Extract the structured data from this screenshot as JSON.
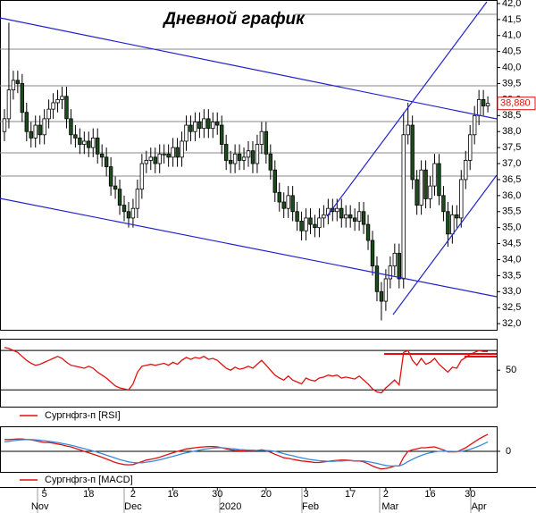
{
  "chart_data": [
    {
      "type": "candlestick",
      "title": "Дневной график",
      "ylim": [
        31.78,
        42.11
      ],
      "xlim": [
        -1,
        111
      ],
      "yticks": [
        {
          "value": 32,
          "label": "32,0"
        },
        {
          "value": 32.5,
          "label": "32,5"
        },
        {
          "value": 33,
          "label": "33,0"
        },
        {
          "value": 33.5,
          "label": "33,5"
        },
        {
          "value": 34,
          "label": "34,0"
        },
        {
          "value": 34.5,
          "label": "34,5"
        },
        {
          "value": 35,
          "label": "35,0"
        },
        {
          "value": 35.5,
          "label": "35,5"
        },
        {
          "value": 36,
          "label": "36,0"
        },
        {
          "value": 36.5,
          "label": "36,5"
        },
        {
          "value": 37,
          "label": "37,0"
        },
        {
          "value": 37.5,
          "label": "37,5"
        },
        {
          "value": 38,
          "label": "38,0"
        },
        {
          "value": 38.5,
          "label": "38,5"
        },
        {
          "value": 39,
          "label": "39,0"
        },
        {
          "value": 39.5,
          "label": "39,5"
        },
        {
          "value": 40,
          "label": "40,0"
        },
        {
          "value": 40.5,
          "label": "40,5"
        },
        {
          "value": 41,
          "label": "41,0"
        },
        {
          "value": 41.5,
          "label": "41,5"
        },
        {
          "value": 42,
          "label": "42,0"
        }
      ],
      "xticks": [
        {
          "value": 9,
          "label": "5"
        },
        {
          "value": 19,
          "label": "18"
        },
        {
          "value": 29,
          "label": "2"
        },
        {
          "value": 38,
          "label": "16"
        },
        {
          "value": 48,
          "label": "30"
        },
        {
          "value": 59,
          "label": "20"
        },
        {
          "value": 68,
          "label": "3"
        },
        {
          "value": 78,
          "label": "17"
        },
        {
          "value": 86,
          "label": "2"
        },
        {
          "value": 96,
          "label": "16"
        },
        {
          "value": 105,
          "label": "30"
        }
      ],
      "month_ticks": [
        {
          "value": 8,
          "label": "Nov"
        },
        {
          "value": 29,
          "label": "Dec"
        },
        {
          "value": 51,
          "label": "2020"
        },
        {
          "value": 69,
          "label": "Feb"
        },
        {
          "value": 87,
          "label": "Mar"
        },
        {
          "value": 107,
          "label": "Apr"
        }
      ],
      "last_price": {
        "value": 38.88,
        "label": "38,880"
      },
      "up_color": "#ffffff",
      "down_color": "#1d4d1d",
      "open": [
        38.0,
        38.4,
        39.3,
        39.6,
        39.5,
        38.6,
        38.0,
        37.8,
        38.2,
        37.9,
        38.4,
        38.7,
        38.9,
        39.0,
        39.1,
        38.4,
        37.9,
        37.8,
        37.6,
        37.7,
        37.5,
        37.8,
        37.3,
        37.2,
        36.9,
        36.3,
        36.2,
        35.7,
        35.5,
        35.3,
        35.6,
        36.2,
        37.0,
        37.1,
        37.2,
        37.0,
        37.3,
        37.3,
        37.2,
        37.5,
        37.2,
        37.7,
        38.2,
        38.0,
        38.3,
        38.1,
        38.4,
        38.1,
        38.3,
        38.2,
        37.6,
        37.1,
        37.0,
        37.3,
        37.1,
        37.2,
        37.4,
        37.0,
        37.6,
        38.0,
        37.3,
        36.8,
        36.1,
        35.8,
        35.6,
        36.0,
        35.5,
        35.2,
        34.9,
        35.3,
        35.1,
        35.0,
        35.3,
        35.4,
        35.6,
        35.5,
        35.6,
        35.3,
        35.4,
        35.3,
        35.2,
        35.5,
        35.1,
        34.6,
        33.8,
        33.0,
        32.7,
        33.4,
        33.8,
        34.2,
        33.4,
        37.9,
        38.2,
        36.5,
        35.7,
        36.8,
        35.9,
        36.3,
        37.0,
        36.0,
        35.5,
        34.8,
        35.4,
        35.3,
        36.5,
        37.1,
        37.9,
        38.5,
        39.0,
        38.8
      ],
      "high": [
        38.7,
        41.4,
        39.9,
        39.9,
        39.8,
        38.9,
        38.3,
        38.5,
        38.5,
        38.7,
        39.0,
        39.2,
        39.3,
        39.4,
        39.4,
        38.7,
        38.2,
        38.1,
        38.0,
        38.0,
        38.1,
        38.1,
        37.6,
        37.5,
        37.2,
        36.6,
        36.5,
        36.0,
        35.8,
        35.9,
        36.5,
        37.3,
        37.4,
        37.5,
        37.5,
        37.6,
        37.6,
        37.6,
        37.8,
        37.8,
        38.0,
        38.5,
        38.5,
        38.6,
        38.6,
        38.7,
        38.7,
        38.6,
        38.6,
        38.5,
        37.9,
        37.4,
        37.6,
        37.6,
        37.5,
        37.7,
        37.7,
        37.9,
        38.3,
        38.3,
        37.6,
        37.1,
        36.4,
        36.1,
        36.3,
        36.3,
        35.8,
        35.5,
        35.6,
        35.6,
        35.4,
        35.6,
        35.7,
        35.9,
        35.9,
        35.9,
        35.9,
        35.7,
        35.7,
        35.6,
        35.8,
        35.8,
        35.4,
        34.9,
        34.1,
        33.3,
        33.7,
        34.1,
        34.5,
        34.5,
        38.6,
        38.9,
        38.5,
        36.8,
        37.1,
        37.1,
        36.6,
        37.3,
        37.3,
        36.3,
        35.8,
        35.7,
        35.7,
        36.8,
        37.4,
        38.2,
        38.8,
        39.3,
        39.3,
        39.1
      ],
      "low": [
        37.7,
        38.1,
        39.0,
        39.2,
        38.3,
        37.7,
        37.5,
        37.5,
        37.6,
        37.6,
        38.1,
        38.4,
        38.6,
        38.7,
        38.1,
        37.6,
        37.5,
        37.3,
        37.3,
        37.2,
        37.2,
        37.0,
        36.9,
        36.6,
        36.0,
        35.9,
        35.4,
        35.2,
        35.0,
        35.0,
        35.3,
        35.9,
        36.7,
        36.8,
        36.7,
        36.7,
        37.0,
        36.9,
        36.9,
        36.9,
        36.9,
        37.4,
        37.7,
        37.7,
        37.8,
        37.8,
        37.8,
        37.8,
        37.9,
        37.3,
        36.8,
        36.7,
        36.7,
        36.8,
        36.8,
        36.9,
        36.7,
        36.7,
        37.3,
        37.0,
        36.5,
        35.8,
        35.5,
        35.3,
        35.3,
        35.2,
        34.9,
        34.6,
        34.6,
        34.8,
        34.7,
        34.7,
        35.0,
        35.1,
        35.2,
        35.2,
        35.0,
        35.0,
        35.0,
        34.9,
        34.9,
        34.8,
        34.3,
        33.5,
        32.7,
        32.1,
        32.4,
        33.1,
        33.5,
        33.1,
        33.1,
        37.6,
        36.2,
        35.4,
        35.4,
        35.6,
        35.6,
        36.0,
        35.7,
        35.2,
        34.4,
        34.5,
        35.0,
        35.0,
        36.2,
        36.8,
        37.6,
        38.2,
        38.5,
        38.6
      ],
      "close": [
        38.4,
        39.3,
        39.6,
        39.5,
        38.6,
        38.0,
        37.8,
        38.2,
        37.9,
        38.4,
        38.7,
        38.9,
        39.0,
        39.1,
        38.4,
        37.9,
        37.8,
        37.6,
        37.7,
        37.5,
        37.8,
        37.3,
        37.2,
        36.9,
        36.3,
        36.2,
        35.7,
        35.5,
        35.3,
        35.6,
        36.2,
        37.0,
        37.1,
        37.2,
        37.0,
        37.3,
        37.3,
        37.2,
        37.5,
        37.2,
        37.7,
        38.2,
        38.0,
        38.3,
        38.1,
        38.4,
        38.1,
        38.3,
        38.2,
        37.6,
        37.1,
        37.0,
        37.3,
        37.1,
        37.2,
        37.4,
        37.0,
        37.6,
        38.0,
        37.3,
        36.8,
        36.1,
        35.8,
        35.6,
        36.0,
        35.5,
        35.2,
        34.9,
        35.3,
        35.1,
        35.0,
        35.3,
        35.4,
        35.6,
        35.5,
        35.6,
        35.3,
        35.4,
        35.3,
        35.2,
        35.5,
        35.1,
        34.6,
        33.8,
        33.0,
        32.7,
        33.4,
        33.8,
        34.2,
        33.4,
        37.9,
        38.2,
        36.5,
        35.7,
        36.8,
        35.9,
        36.3,
        37.0,
        36.0,
        35.5,
        34.8,
        35.4,
        35.3,
        36.5,
        37.1,
        37.9,
        38.5,
        39.0,
        38.8,
        38.88
      ]
    },
    {
      "type": "line",
      "ylim": [
        13,
        81
      ],
      "xlim": [
        -1,
        111
      ],
      "yticks": [
        50
      ],
      "levels": [
        30,
        70
      ],
      "series": [
        {
          "name": "Сургнфгз-п [RSI]",
          "color": "#e01010",
          "values": [
            73,
            72,
            70,
            68,
            64,
            60,
            57,
            55,
            56,
            58,
            60,
            62,
            64,
            62,
            58,
            55,
            54,
            53,
            52,
            54,
            52,
            48,
            45,
            42,
            38,
            34,
            32,
            31,
            30,
            36,
            48,
            54,
            55,
            56,
            55,
            56,
            57,
            55,
            58,
            56,
            60,
            63,
            61,
            63,
            62,
            64,
            61,
            62,
            60,
            56,
            52,
            50,
            53,
            51,
            52,
            54,
            52,
            56,
            60,
            55,
            50,
            45,
            42,
            40,
            44,
            40,
            38,
            36,
            42,
            40,
            39,
            42,
            43,
            45,
            44,
            45,
            42,
            43,
            42,
            41,
            44,
            40,
            36,
            31,
            28,
            27,
            32,
            36,
            40,
            35,
            68,
            70,
            60,
            55,
            62,
            56,
            58,
            62,
            56,
            52,
            48,
            53,
            52,
            60,
            63,
            66,
            68,
            70,
            69,
            69
          ]
        }
      ]
    },
    {
      "type": "line",
      "ylim": [
        -0.7,
        0.82
      ],
      "xlim": [
        -1,
        111
      ],
      "yticks": [
        0
      ],
      "series": [
        {
          "name": "Сургнфгз-п [MACD]",
          "color": "#e01010",
          "values": [
            0.4,
            0.4,
            0.41,
            0.42,
            0.42,
            0.4,
            0.39,
            0.36,
            0.33,
            0.3,
            0.3,
            0.28,
            0.25,
            0.22,
            0.18,
            0.15,
            0.1,
            0.05,
            0.0,
            -0.05,
            -0.1,
            -0.15,
            -0.2,
            -0.26,
            -0.32,
            -0.38,
            -0.42,
            -0.45,
            -0.46,
            -0.45,
            -0.4,
            -0.35,
            -0.3,
            -0.27,
            -0.24,
            -0.2,
            -0.15,
            -0.1,
            -0.05,
            0.0,
            0.04,
            0.08,
            0.1,
            0.12,
            0.14,
            0.15,
            0.16,
            0.16,
            0.15,
            0.12,
            0.08,
            0.05,
            0.03,
            0.02,
            0.02,
            0.03,
            0.02,
            0.03,
            0.05,
            0.02,
            -0.03,
            -0.1,
            -0.16,
            -0.22,
            -0.24,
            -0.27,
            -0.3,
            -0.33,
            -0.34,
            -0.36,
            -0.38,
            -0.38,
            -0.36,
            -0.34,
            -0.32,
            -0.31,
            -0.3,
            -0.3,
            -0.31,
            -0.33,
            -0.33,
            -0.36,
            -0.42,
            -0.5,
            -0.56,
            -0.6,
            -0.58,
            -0.55,
            -0.5,
            -0.5,
            -0.2,
            0.0,
            0.05,
            0.08,
            0.12,
            0.12,
            0.14,
            0.15,
            0.1,
            0.05,
            -0.02,
            -0.02,
            -0.02,
            0.05,
            0.12,
            0.22,
            0.32,
            0.42,
            0.5,
            0.58
          ]
        },
        {
          "color": "#3a8ad8",
          "values": [
            0.32,
            0.34,
            0.36,
            0.38,
            0.39,
            0.4,
            0.4,
            0.39,
            0.38,
            0.36,
            0.34,
            0.32,
            0.3,
            0.27,
            0.24,
            0.21,
            0.17,
            0.13,
            0.09,
            0.05,
            0.01,
            -0.03,
            -0.08,
            -0.13,
            -0.18,
            -0.23,
            -0.28,
            -0.32,
            -0.36,
            -0.38,
            -0.39,
            -0.39,
            -0.37,
            -0.35,
            -0.32,
            -0.29,
            -0.25,
            -0.21,
            -0.17,
            -0.13,
            -0.09,
            -0.05,
            -0.02,
            0.01,
            0.04,
            0.07,
            0.09,
            0.11,
            0.12,
            0.12,
            0.11,
            0.09,
            0.08,
            0.06,
            0.05,
            0.04,
            0.04,
            0.03,
            0.03,
            0.03,
            0.02,
            0.0,
            -0.04,
            -0.08,
            -0.12,
            -0.15,
            -0.19,
            -0.22,
            -0.25,
            -0.28,
            -0.3,
            -0.32,
            -0.33,
            -0.34,
            -0.34,
            -0.33,
            -0.33,
            -0.32,
            -0.32,
            -0.32,
            -0.32,
            -0.33,
            -0.35,
            -0.38,
            -0.41,
            -0.45,
            -0.48,
            -0.5,
            -0.5,
            -0.5,
            -0.44,
            -0.35,
            -0.27,
            -0.2,
            -0.14,
            -0.09,
            -0.05,
            -0.02,
            0.0,
            0.01,
            0.0,
            0.0,
            -0.01,
            0.0,
            0.03,
            0.07,
            0.12,
            0.18,
            0.25,
            0.32
          ]
        }
      ]
    }
  ]
}
